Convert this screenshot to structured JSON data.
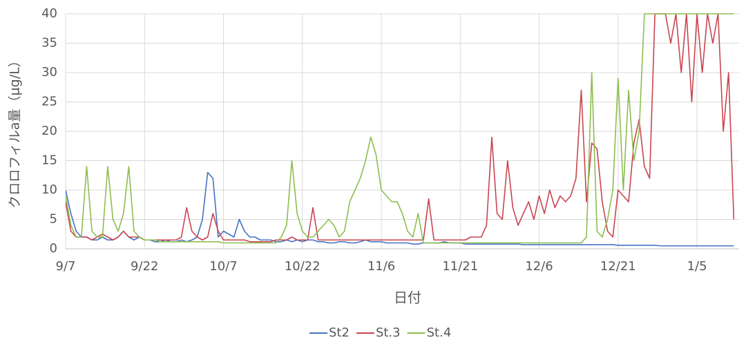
{
  "chart_data": {
    "type": "line",
    "x_label": "日付",
    "y_label": "クロロフィルa量（μg/L）",
    "categories": [
      "9/7",
      null,
      null,
      null,
      null,
      null,
      null,
      null,
      null,
      null,
      null,
      null,
      null,
      null,
      null,
      "9/22",
      null,
      null,
      null,
      null,
      null,
      null,
      null,
      null,
      null,
      null,
      null,
      null,
      null,
      null,
      "10/7",
      null,
      null,
      null,
      null,
      null,
      null,
      null,
      null,
      null,
      null,
      null,
      null,
      null,
      null,
      "10/22",
      null,
      null,
      null,
      null,
      null,
      null,
      null,
      null,
      null,
      null,
      null,
      null,
      null,
      null,
      "11/6",
      null,
      null,
      null,
      null,
      null,
      null,
      null,
      null,
      null,
      null,
      null,
      null,
      null,
      null,
      "11/21",
      null,
      null,
      null,
      null,
      null,
      null,
      null,
      null,
      null,
      null,
      null,
      null,
      null,
      null,
      "12/6",
      null,
      null,
      null,
      null,
      null,
      null,
      null,
      null,
      null,
      null,
      null,
      null,
      null,
      null,
      "12/21",
      null,
      null,
      null,
      null,
      null,
      null,
      null,
      null,
      null,
      null,
      null,
      null,
      null,
      null,
      "1/5",
      null,
      null,
      null,
      null,
      null,
      null,
      null
    ],
    "ylim": [
      0,
      40
    ],
    "yticks": [
      0,
      5,
      10,
      15,
      20,
      25,
      30,
      35,
      40
    ],
    "grid": true,
    "legend": "bottom",
    "series": [
      {
        "name": "St2",
        "color": "#4472c4",
        "values": [
          10,
          6,
          3,
          2,
          2,
          1.5,
          1.5,
          2,
          1.5,
          1.5,
          2,
          3,
          2,
          1.5,
          2,
          1.5,
          1.5,
          1.2,
          1.2,
          1.5,
          1.2,
          1.2,
          1.5,
          1.2,
          1.5,
          2,
          5,
          13,
          12,
          2,
          3,
          2.5,
          2,
          5,
          3,
          2,
          2,
          1.5,
          1.5,
          1.5,
          1.2,
          1.2,
          1.5,
          1.2,
          1.5,
          1.2,
          1.5,
          1.5,
          1.2,
          1.2,
          1,
          1,
          1.2,
          1.2,
          1,
          1,
          1.2,
          1.5,
          1.2,
          1.2,
          1.2,
          1,
          1,
          1,
          1,
          1,
          0.8,
          0.8,
          1,
          1,
          1,
          1,
          1.2,
          1,
          1,
          1,
          0.8,
          0.8,
          0.8,
          0.8,
          0.8,
          0.8,
          0.8,
          0.8,
          0.8,
          0.8,
          0.8,
          0.7,
          0.7,
          0.7,
          0.7,
          0.7,
          0.7,
          0.7,
          0.7,
          0.7,
          0.7,
          0.7,
          0.7,
          0.7,
          0.7,
          0.7,
          0.7,
          0.7,
          0.7,
          0.6,
          0.6,
          0.6,
          0.6,
          0.6,
          0.6,
          0.6,
          0.6,
          0.5,
          0.5,
          0.5,
          0.5,
          0.5,
          0.5,
          0.5,
          0.5,
          0.5,
          0.5,
          0.5,
          0.5,
          0.5,
          0.5,
          0.5
        ]
      },
      {
        "name": "St.3",
        "color": "#c9444f",
        "values": [
          8,
          3,
          2,
          2,
          2,
          1.5,
          2,
          2.5,
          2,
          1.5,
          2,
          3,
          2,
          2,
          2,
          1.5,
          1.5,
          1.5,
          1.5,
          1.5,
          1.5,
          1.5,
          2,
          7,
          3,
          2,
          1.5,
          2,
          6,
          3,
          1.5,
          1.5,
          1.5,
          1.5,
          1.5,
          1.2,
          1.2,
          1.2,
          1.2,
          1.2,
          1.5,
          1.5,
          1.5,
          2,
          1.5,
          1.5,
          1.5,
          7,
          1.5,
          1.5,
          1.5,
          1.5,
          1.5,
          1.5,
          1.5,
          1.5,
          1.5,
          1.5,
          1.5,
          1.5,
          1.5,
          1.5,
          1.5,
          1.5,
          1.5,
          1.5,
          1.5,
          1.5,
          1.5,
          8.5,
          1.5,
          1.5,
          1.5,
          1.5,
          1.5,
          1.5,
          1.5,
          2,
          2,
          2,
          4,
          19,
          6,
          5,
          15,
          7,
          4,
          6,
          8,
          5,
          9,
          6,
          10,
          7,
          9,
          8,
          9,
          12,
          27,
          8,
          18,
          17,
          8,
          3,
          2,
          10,
          9,
          8,
          18,
          22,
          14,
          12,
          40,
          40,
          40,
          35,
          40,
          30,
          40,
          25,
          40,
          30,
          40,
          35,
          40,
          20,
          30,
          5
        ]
      },
      {
        "name": "St.4",
        "color": "#8cbd4e",
        "values": [
          9,
          4,
          2,
          2,
          14,
          3,
          2,
          2,
          14,
          5,
          3,
          6,
          14,
          3,
          2,
          1.5,
          1.5,
          1.5,
          1.2,
          1.2,
          1.2,
          1.2,
          1.2,
          1.2,
          1.2,
          1.2,
          1.2,
          1.2,
          1.2,
          1.2,
          1,
          1,
          1,
          1,
          1,
          1,
          1,
          1,
          1,
          1,
          1,
          2,
          4,
          15,
          6,
          3,
          2,
          2,
          3,
          4,
          5,
          4,
          2,
          3,
          8,
          10,
          12,
          15,
          19,
          16,
          10,
          9,
          8,
          8,
          6,
          3,
          2,
          6,
          1,
          1,
          1,
          1,
          1,
          1,
          1,
          1,
          1,
          1,
          1,
          1,
          1,
          1,
          1,
          1,
          1,
          1,
          1,
          1,
          1,
          1,
          1,
          1,
          1,
          1,
          1,
          1,
          1,
          1,
          1,
          2,
          30,
          3,
          2,
          5,
          10,
          29,
          10,
          27,
          15,
          20,
          40,
          40,
          40,
          40,
          40,
          40,
          40,
          40,
          40,
          40,
          40,
          40,
          40,
          40,
          40,
          40,
          40,
          40
        ]
      }
    ]
  }
}
